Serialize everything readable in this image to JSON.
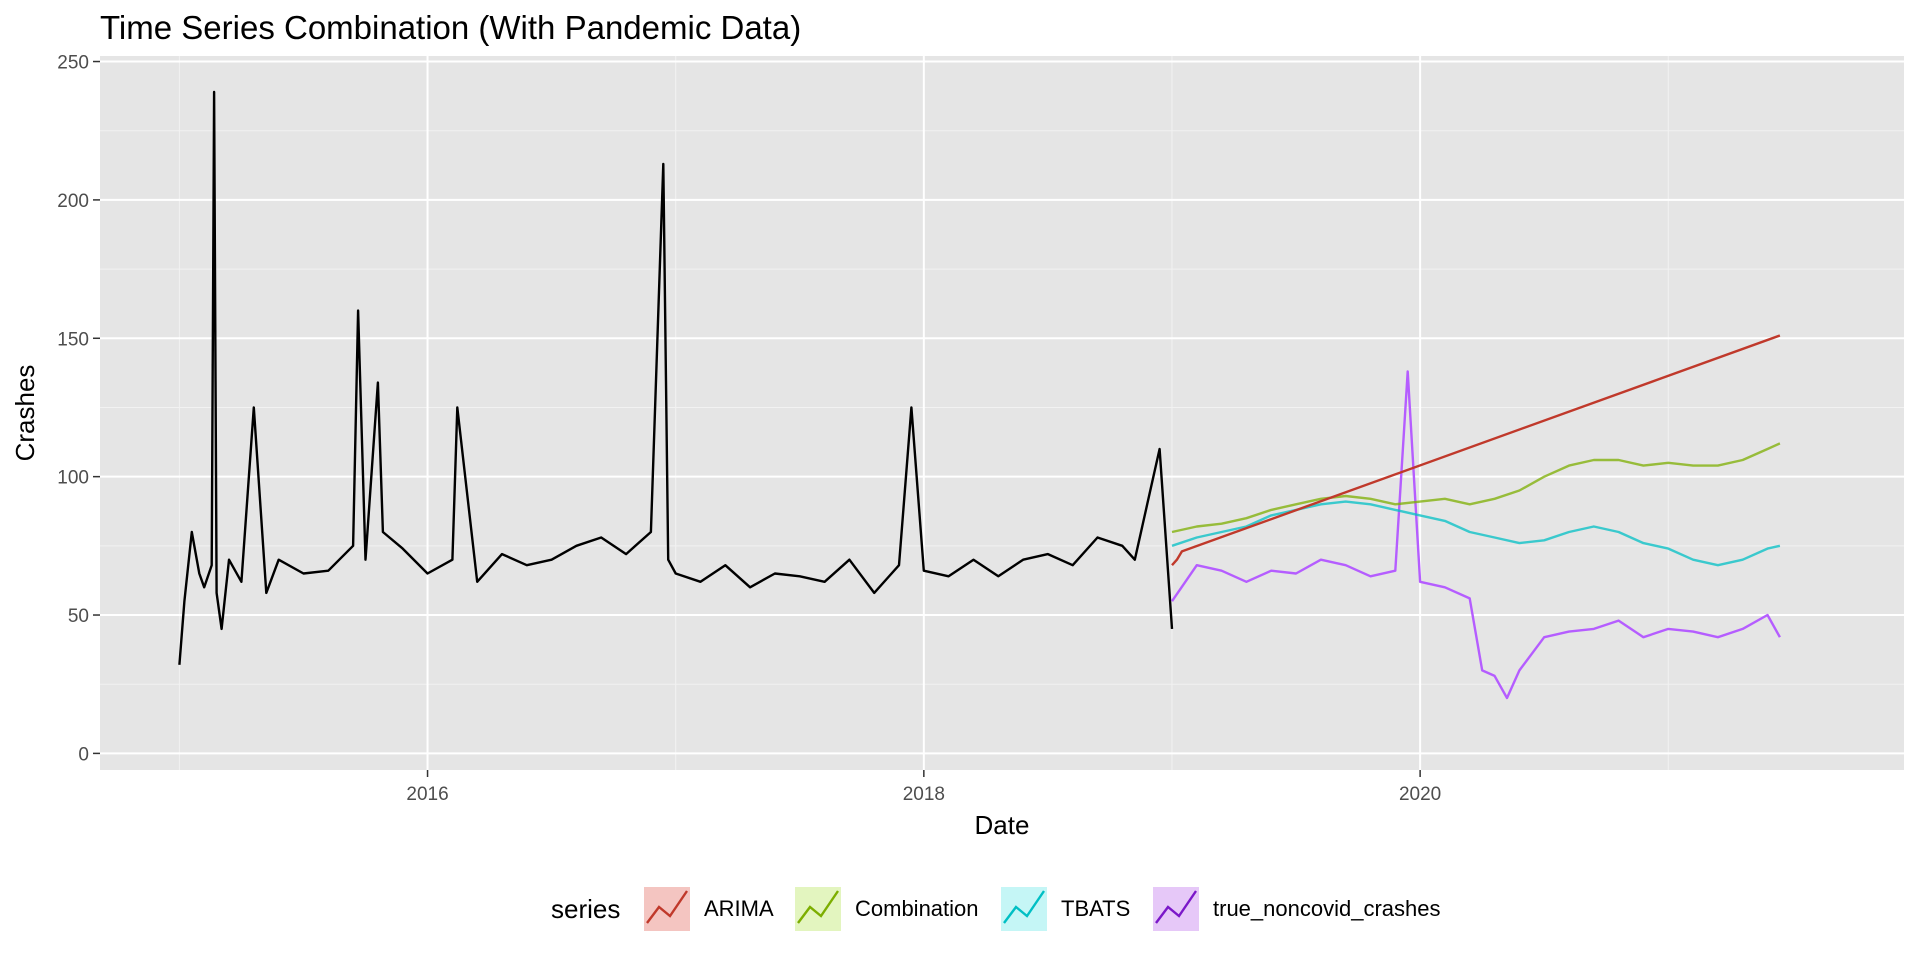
{
  "chart_data": {
    "type": "line",
    "title": "Time Series Combination (With Pandemic Data)",
    "xlabel": "Date",
    "ylabel": "Crashes",
    "xlim": [
      2014.68,
      2021.95
    ],
    "ylim": [
      -6,
      252
    ],
    "x_ticks": [
      2016,
      2018,
      2020
    ],
    "x_tick_labels": [
      "2016",
      "2018",
      "2020"
    ],
    "y_ticks": [
      0,
      50,
      100,
      150,
      200,
      250
    ],
    "y_tick_labels": [
      "0",
      "50",
      "100",
      "150",
      "200",
      "250"
    ],
    "grid": true,
    "legend": {
      "title": "series",
      "position": "bottom",
      "entries": [
        "ARIMA",
        "Combination",
        "TBATS",
        "true_noncovid_crashes"
      ]
    },
    "series": [
      {
        "name": "",
        "color": "#000000",
        "x": [
          2015.0,
          2015.02,
          2015.05,
          2015.08,
          2015.1,
          2015.13,
          2015.14,
          2015.15,
          2015.17,
          2015.2,
          2015.25,
          2015.3,
          2015.35,
          2015.4,
          2015.5,
          2015.6,
          2015.7,
          2015.72,
          2015.75,
          2015.8,
          2015.82,
          2015.9,
          2016.0,
          2016.1,
          2016.12,
          2016.2,
          2016.3,
          2016.4,
          2016.5,
          2016.6,
          2016.7,
          2016.8,
          2016.9,
          2016.95,
          2016.97,
          2017.0,
          2017.1,
          2017.2,
          2017.3,
          2017.4,
          2017.5,
          2017.6,
          2017.7,
          2017.8,
          2017.9,
          2017.95,
          2018.0,
          2018.1,
          2018.2,
          2018.3,
          2018.4,
          2018.5,
          2018.6,
          2018.7,
          2018.8,
          2018.85,
          2018.9,
          2018.95,
          2019.0
        ],
        "y": [
          32,
          55,
          80,
          65,
          60,
          68,
          239,
          58,
          45,
          70,
          62,
          125,
          58,
          70,
          65,
          66,
          75,
          160,
          70,
          134,
          80,
          74,
          65,
          70,
          125,
          62,
          72,
          68,
          70,
          75,
          78,
          72,
          80,
          213,
          70,
          65,
          62,
          68,
          60,
          65,
          64,
          62,
          70,
          58,
          68,
          125,
          66,
          64,
          70,
          64,
          70,
          72,
          68,
          78,
          75,
          70,
          90,
          110,
          45
        ]
      },
      {
        "name": "true_noncovid_crashes",
        "color": "#b55dff",
        "x": [
          2019.0,
          2019.1,
          2019.2,
          2019.3,
          2019.4,
          2019.5,
          2019.6,
          2019.7,
          2019.8,
          2019.9,
          2019.95,
          2020.0,
          2020.1,
          2020.2,
          2020.25,
          2020.3,
          2020.35,
          2020.4,
          2020.5,
          2020.6,
          2020.7,
          2020.8,
          2020.9,
          2021.0,
          2021.1,
          2021.2,
          2021.3,
          2021.4,
          2021.45
        ],
        "y": [
          55,
          68,
          66,
          62,
          66,
          65,
          70,
          68,
          64,
          66,
          138,
          62,
          60,
          56,
          30,
          28,
          20,
          30,
          42,
          44,
          45,
          48,
          42,
          45,
          44,
          42,
          45,
          50,
          42
        ]
      },
      {
        "name": "TBATS",
        "color": "#00bfc4",
        "x": [
          2019.0,
          2019.1,
          2019.2,
          2019.3,
          2019.4,
          2019.5,
          2019.6,
          2019.7,
          2019.8,
          2019.9,
          2020.0,
          2020.1,
          2020.2,
          2020.3,
          2020.4,
          2020.5,
          2020.6,
          2020.7,
          2020.8,
          2020.9,
          2021.0,
          2021.1,
          2021.2,
          2021.3,
          2021.4,
          2021.45
        ],
        "y": [
          75,
          78,
          80,
          82,
          86,
          88,
          90,
          91,
          90,
          88,
          86,
          84,
          80,
          78,
          76,
          77,
          80,
          82,
          80,
          76,
          74,
          70,
          68,
          70,
          74,
          75
        ]
      },
      {
        "name": "Combination",
        "color": "#7cae00",
        "x": [
          2019.0,
          2019.1,
          2019.2,
          2019.3,
          2019.4,
          2019.5,
          2019.6,
          2019.7,
          2019.8,
          2019.9,
          2020.0,
          2020.1,
          2020.2,
          2020.3,
          2020.4,
          2020.5,
          2020.6,
          2020.7,
          2020.8,
          2020.9,
          2021.0,
          2021.1,
          2021.2,
          2021.3,
          2021.4,
          2021.45
        ],
        "y": [
          80,
          82,
          83,
          85,
          88,
          90,
          92,
          93,
          92,
          90,
          91,
          92,
          90,
          92,
          95,
          100,
          104,
          106,
          106,
          104,
          105,
          104,
          104,
          106,
          110,
          112
        ]
      },
      {
        "name": "ARIMA",
        "color": "#c0392b",
        "x": [
          2019.0,
          2019.02,
          2019.04,
          2021.45
        ],
        "y": [
          68,
          70,
          73,
          151
        ]
      }
    ]
  }
}
